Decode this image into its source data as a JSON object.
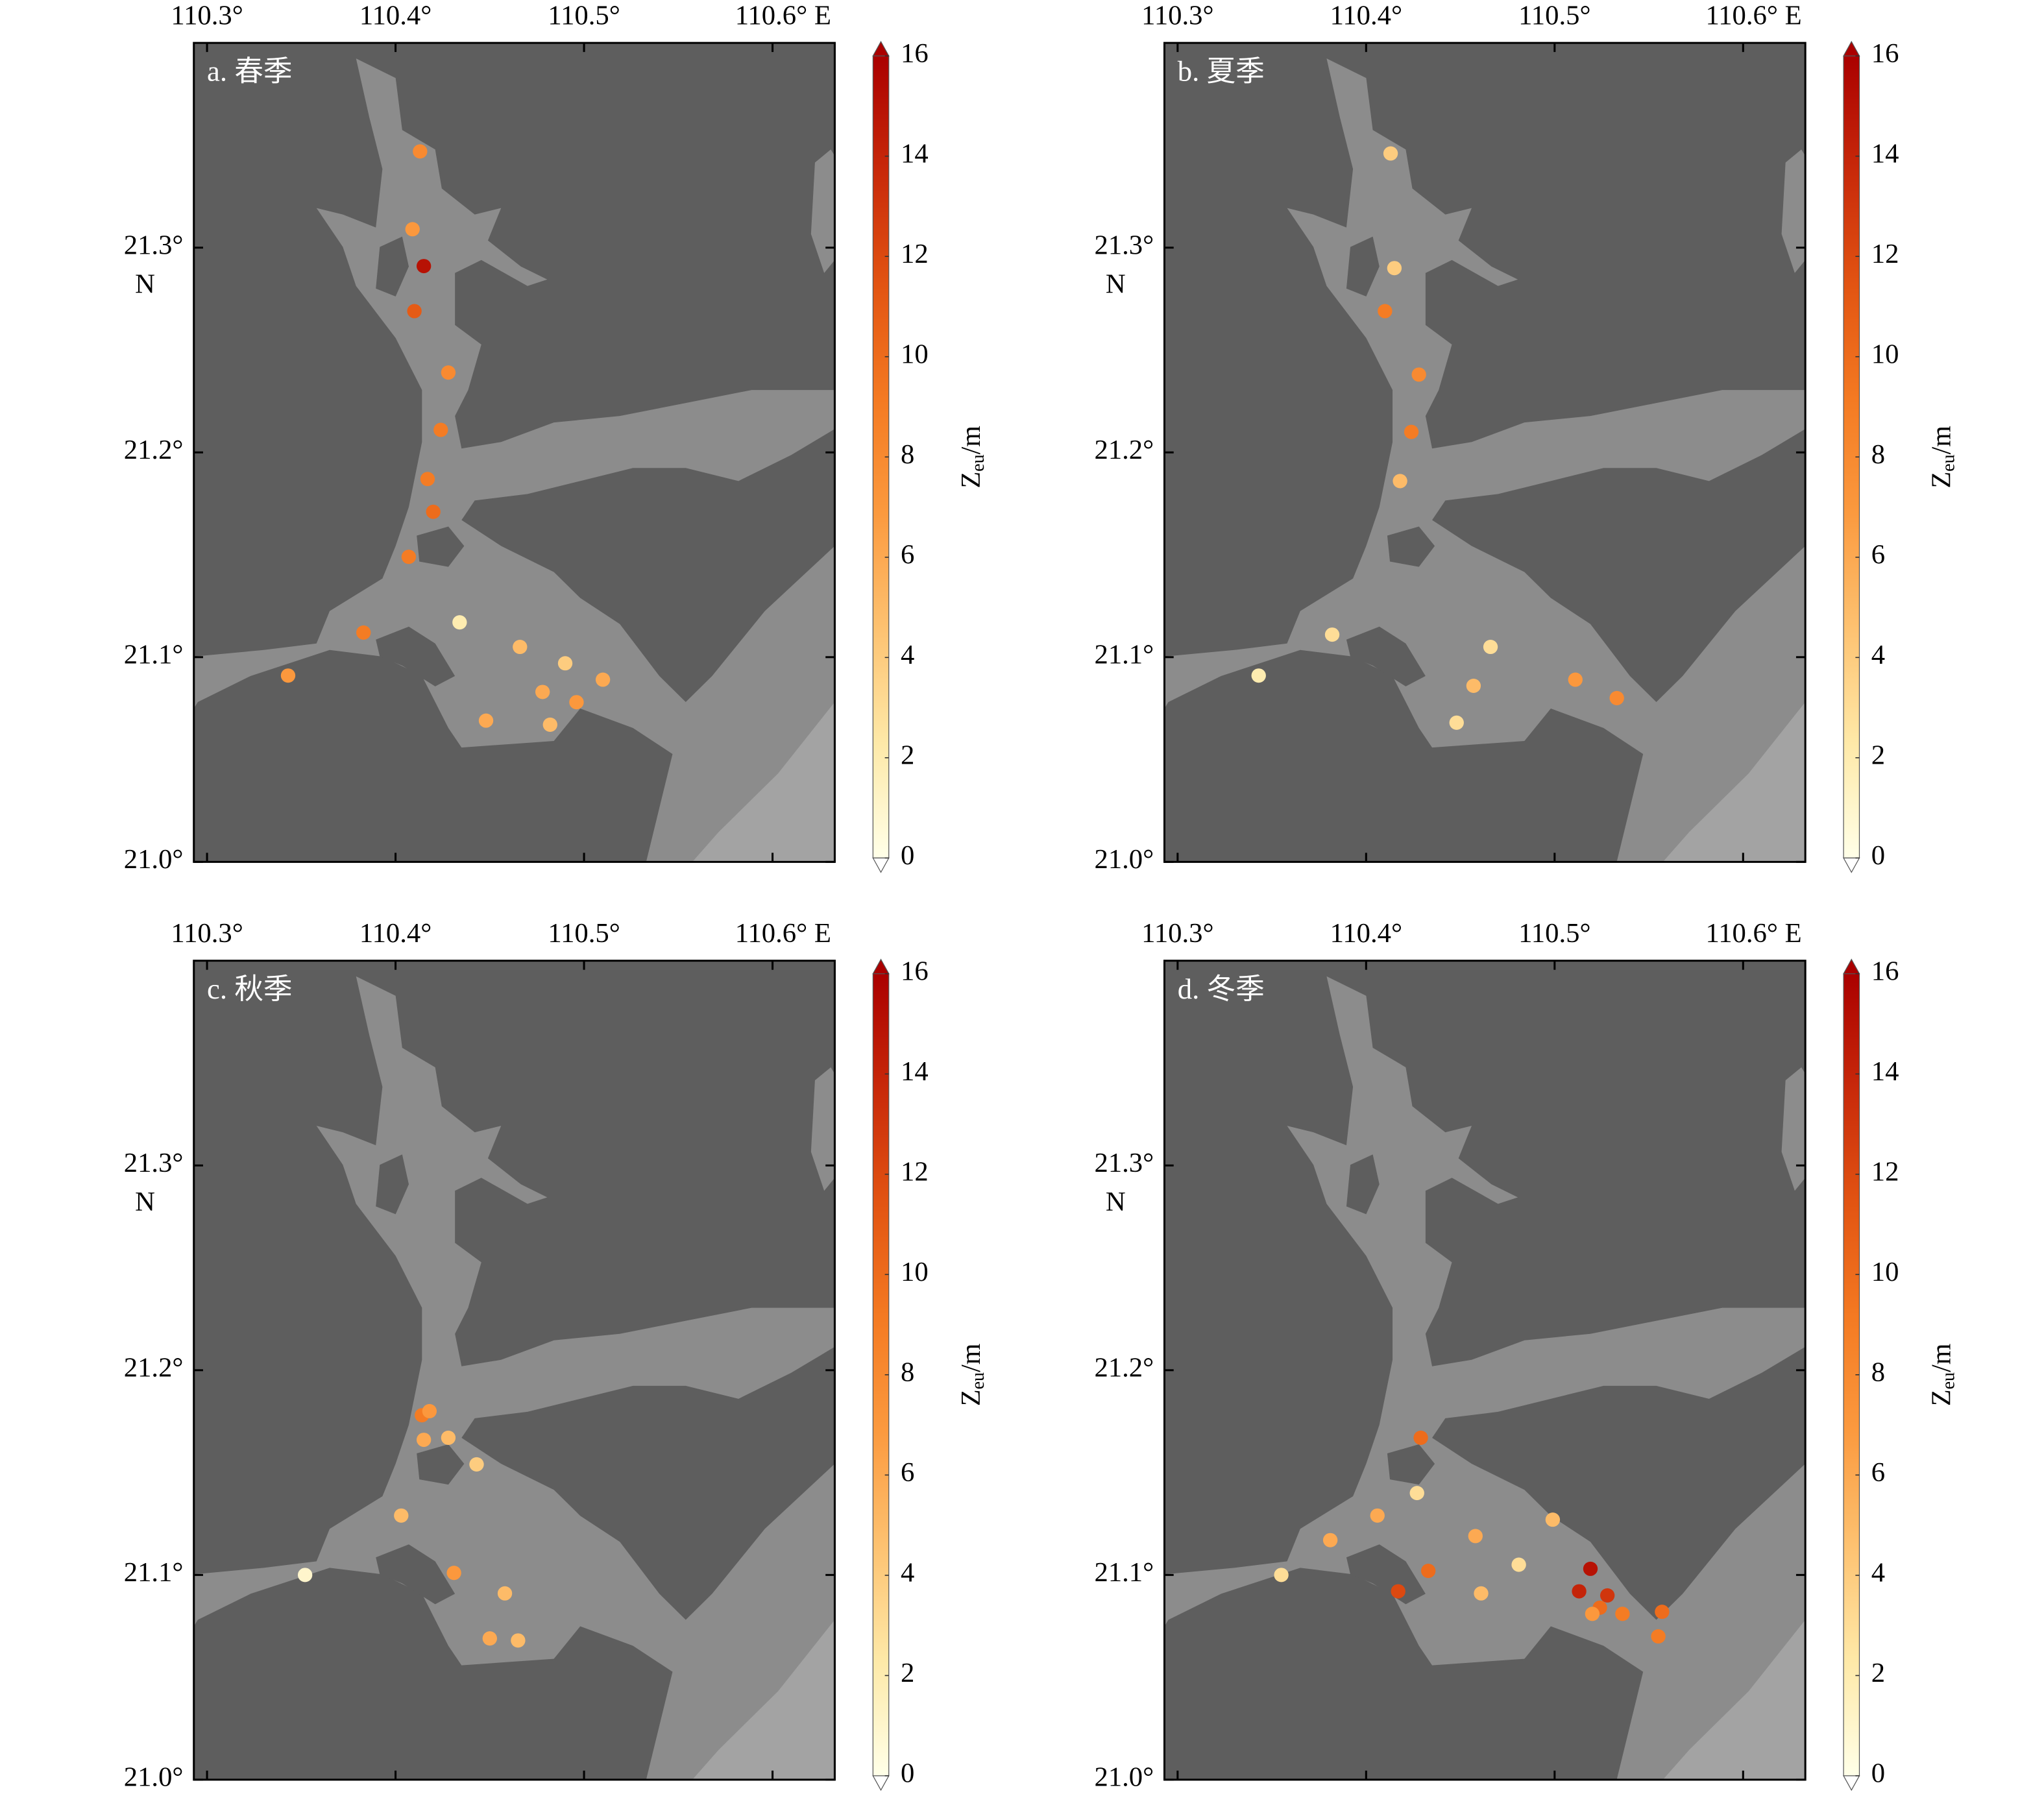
{
  "chart_data": [
    {
      "type": "scatter",
      "title": "a. 春季",
      "x": [
        110.413,
        110.409,
        110.415,
        110.41,
        110.428,
        110.424,
        110.417,
        110.42,
        110.407,
        110.383,
        110.343,
        110.434,
        110.466,
        110.49,
        110.478,
        110.51,
        110.496,
        110.448,
        110.482
      ],
      "y": [
        21.347,
        21.309,
        21.291,
        21.269,
        21.239,
        21.211,
        21.187,
        21.171,
        21.149,
        21.112,
        21.091,
        21.117,
        21.105,
        21.097,
        21.083,
        21.089,
        21.078,
        21.069,
        21.067
      ],
      "values": [
        8,
        7,
        15,
        11,
        8,
        9,
        9,
        10,
        9,
        9,
        7,
        2,
        5,
        4,
        6,
        6,
        7,
        6,
        5
      ],
      "xlim": [
        110.293,
        110.633
      ],
      "ylim": [
        21.0,
        21.4
      ],
      "xticks": [
        {
          "value": 110.3,
          "label": "110.3°"
        },
        {
          "value": 110.4,
          "label": "110.4°"
        },
        {
          "value": 110.5,
          "label": "110.5°"
        },
        {
          "value": 110.6,
          "label": "110.6° E"
        }
      ],
      "yticks": [
        {
          "value": 21.0,
          "label": "21.0°"
        },
        {
          "value": 21.1,
          "label": "21.1°"
        },
        {
          "value": 21.2,
          "label": "21.2°"
        },
        {
          "value": 21.3,
          "label": "21.3°"
        }
      ],
      "ylabel": "N",
      "clim": [
        0,
        16
      ],
      "cticks": [
        0,
        2,
        4,
        6,
        8,
        10,
        12,
        14,
        16
      ],
      "colorbar_label": [
        "Z",
        "eu",
        "/m"
      ],
      "colormap": [
        "#ffffe8",
        "#fee9a8",
        "#fdc271",
        "#fb9a3f",
        "#f47a22",
        "#e25412",
        "#c8290a",
        "#aa0000"
      ]
    },
    {
      "type": "scatter",
      "title": "b. 夏季",
      "x": [
        110.413,
        110.415,
        110.41,
        110.428,
        110.424,
        110.418,
        110.382,
        110.343,
        110.466,
        110.457,
        110.448,
        110.511,
        110.533
      ],
      "y": [
        21.346,
        21.29,
        21.269,
        21.238,
        21.21,
        21.186,
        21.111,
        21.091,
        21.105,
        21.086,
        21.068,
        21.089,
        21.08
      ],
      "values": [
        4,
        4,
        9,
        8,
        9,
        5,
        3,
        2,
        3,
        5,
        3,
        7,
        8
      ],
      "xlim": [
        110.293,
        110.633
      ],
      "ylim": [
        21.0,
        21.4
      ],
      "xticks": [
        {
          "value": 110.3,
          "label": "110.3°"
        },
        {
          "value": 110.4,
          "label": "110.4°"
        },
        {
          "value": 110.5,
          "label": "110.5°"
        },
        {
          "value": 110.6,
          "label": "110.6° E"
        }
      ],
      "yticks": [
        {
          "value": 21.0,
          "label": "21.0°"
        },
        {
          "value": 21.1,
          "label": "21.1°"
        },
        {
          "value": 21.2,
          "label": "21.2°"
        },
        {
          "value": 21.3,
          "label": "21.3°"
        }
      ],
      "ylabel": "N",
      "clim": [
        0,
        16
      ],
      "cticks": [
        0,
        2,
        4,
        6,
        8,
        10,
        12,
        14,
        16
      ],
      "colorbar_label": [
        "Z",
        "eu",
        "/m"
      ],
      "colormap": [
        "#ffffe8",
        "#fee9a8",
        "#fdc271",
        "#fb9a3f",
        "#f47a22",
        "#e25412",
        "#c8290a",
        "#aa0000"
      ]
    },
    {
      "type": "scatter",
      "title": "c. 秋季",
      "x": [
        110.414,
        110.418,
        110.415,
        110.428,
        110.443,
        110.403,
        110.352,
        110.431,
        110.458,
        110.45,
        110.465
      ],
      "y": [
        21.178,
        21.18,
        21.166,
        21.167,
        21.154,
        21.129,
        21.1,
        21.101,
        21.091,
        21.069,
        21.068
      ],
      "values": [
        9,
        7,
        6,
        5,
        4,
        5,
        1,
        7,
        5,
        6,
        5
      ],
      "xlim": [
        110.293,
        110.633
      ],
      "ylim": [
        21.0,
        21.4
      ],
      "xticks": [
        {
          "value": 110.3,
          "label": "110.3°"
        },
        {
          "value": 110.4,
          "label": "110.4°"
        },
        {
          "value": 110.5,
          "label": "110.5°"
        },
        {
          "value": 110.6,
          "label": "110.6° E"
        }
      ],
      "yticks": [
        {
          "value": 21.0,
          "label": "21.0°"
        },
        {
          "value": 21.1,
          "label": "21.1°"
        },
        {
          "value": 21.2,
          "label": "21.2°"
        },
        {
          "value": 21.3,
          "label": "21.3°"
        }
      ],
      "ylabel": "N",
      "clim": [
        0,
        16
      ],
      "cticks": [
        0,
        2,
        4,
        6,
        8,
        10,
        12,
        14,
        16
      ],
      "colorbar_label": [
        "Z",
        "eu",
        "/m"
      ],
      "colormap": [
        "#ffffe8",
        "#fee9a8",
        "#fdc271",
        "#fb9a3f",
        "#f47a22",
        "#e25412",
        "#c8290a",
        "#aa0000"
      ]
    },
    {
      "type": "scatter",
      "title": "d. 冬季",
      "x": [
        110.429,
        110.427,
        110.406,
        110.381,
        110.458,
        110.499,
        110.481,
        110.355,
        110.433,
        110.417,
        110.461,
        110.519,
        110.513,
        110.528,
        110.524,
        110.52,
        110.536,
        110.557,
        110.555
      ],
      "y": [
        21.167,
        21.14,
        21.129,
        21.117,
        21.119,
        21.127,
        21.105,
        21.1,
        21.102,
        21.092,
        21.091,
        21.103,
        21.092,
        21.09,
        21.084,
        21.081,
        21.081,
        21.082,
        21.07
      ],
      "values": [
        10,
        3,
        6,
        6,
        6,
        5,
        3,
        3,
        10,
        12,
        5,
        15,
        14,
        13,
        10,
        7,
        9,
        10,
        9
      ],
      "xlim": [
        110.293,
        110.633
      ],
      "ylim": [
        21.0,
        21.4
      ],
      "xticks": [
        {
          "value": 110.3,
          "label": "110.3°"
        },
        {
          "value": 110.4,
          "label": "110.4°"
        },
        {
          "value": 110.5,
          "label": "110.5°"
        },
        {
          "value": 110.6,
          "label": "110.6° E"
        }
      ],
      "yticks": [
        {
          "value": 21.0,
          "label": "21.0°"
        },
        {
          "value": 21.1,
          "label": "21.1°"
        },
        {
          "value": 21.2,
          "label": "21.2°"
        },
        {
          "value": 21.3,
          "label": "21.3°"
        }
      ],
      "ylabel": "N",
      "clim": [
        0,
        16
      ],
      "cticks": [
        0,
        2,
        4,
        6,
        8,
        10,
        12,
        14,
        16
      ],
      "colorbar_label": [
        "Z",
        "eu",
        "/m"
      ],
      "colormap": [
        "#ffffe8",
        "#fee9a8",
        "#fdc271",
        "#fb9a3f",
        "#f47a22",
        "#e25412",
        "#c8290a",
        "#aa0000"
      ]
    }
  ]
}
